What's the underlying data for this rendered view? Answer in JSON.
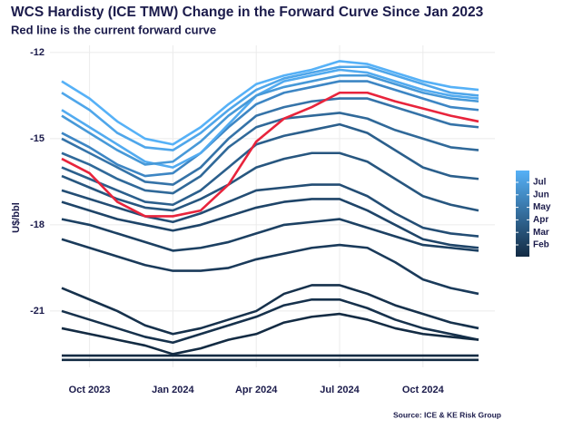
{
  "chart_data": {
    "type": "line",
    "title": "WCS Hardisty (ICE TMW) Change in the Forward Curve Since Jan 2023",
    "subtitle": "Red line is the current forward curve",
    "y_label": "U$/bbl",
    "source": "Source: ICE & KE Risk Group",
    "categories": [
      null,
      "Oct 2023",
      null,
      null,
      "Jan 2024",
      null,
      null,
      "Apr 2024",
      null,
      null,
      "Jul 2024",
      null,
      null,
      "Oct 2024",
      null,
      null
    ],
    "ylim": [
      -22.96,
      -11.75
    ],
    "yticks": [
      -12,
      -15,
      -18,
      -21
    ],
    "grid": true,
    "legend": {
      "position": "right",
      "labels": [
        "Feb",
        "Mar",
        "Apr",
        "May",
        "Jun",
        "Jul"
      ],
      "colors": [
        "#132B43",
        "#56B1F7"
      ]
    },
    "series": [
      {
        "color": "#132B43",
        "values": [
          -22.7,
          -22.7,
          -22.7,
          -22.7,
          -22.7,
          -22.7,
          -22.7,
          -22.7,
          -22.7,
          -22.7,
          -22.7,
          -22.7,
          -22.7,
          -22.7,
          -22.7,
          -22.7
        ]
      },
      {
        "color": "#132B43",
        "values": [
          -22.55,
          -22.55,
          -22.55,
          -22.55,
          -22.55,
          -22.55,
          -22.55,
          -22.55,
          -22.55,
          -22.55,
          -22.55,
          -22.55,
          -22.55,
          -22.55,
          -22.55,
          -22.55
        ]
      },
      {
        "color": "#16314c",
        "values": [
          -21.0,
          -21.3,
          -21.6,
          -21.9,
          -22.1,
          -21.8,
          -21.5,
          -21.2,
          -20.8,
          -20.6,
          -20.6,
          -20.9,
          -21.3,
          -21.6,
          -21.8,
          -22.0
        ]
      },
      {
        "color": "#16314c",
        "values": [
          -20.2,
          -20.6,
          -21.0,
          -21.5,
          -21.8,
          -21.6,
          -21.3,
          -21.0,
          -20.4,
          -20.1,
          -20.1,
          -20.4,
          -20.8,
          -21.1,
          -21.4,
          -21.6
        ]
      },
      {
        "color": "#132B43",
        "values": [
          -21.6,
          -21.8,
          -22.0,
          -22.2,
          -22.5,
          -22.3,
          -22.0,
          -21.8,
          -21.4,
          -21.2,
          -21.1,
          -21.3,
          -21.6,
          -21.8,
          -21.9,
          -22.0
        ]
      },
      {
        "color": "#1a3a5a",
        "values": [
          -18.5,
          -18.8,
          -19.1,
          -19.4,
          -19.6,
          -19.6,
          -19.5,
          -19.2,
          -19.0,
          -18.8,
          -18.7,
          -18.8,
          -19.3,
          -19.9,
          -20.2,
          -20.4
        ]
      },
      {
        "color": "#1c4062",
        "values": [
          -17.8,
          -18.0,
          -18.3,
          -18.6,
          -18.9,
          -18.8,
          -18.6,
          -18.3,
          -18.0,
          -17.9,
          -17.8,
          -18.1,
          -18.4,
          -18.7,
          -18.8,
          -18.9
        ]
      },
      {
        "color": "#1e4468",
        "values": [
          -17.2,
          -17.5,
          -17.8,
          -18.0,
          -18.2,
          -18.0,
          -17.7,
          -17.4,
          -17.2,
          -17.1,
          -17.1,
          -17.5,
          -18.0,
          -18.5,
          -18.7,
          -18.8
        ]
      },
      {
        "color": "#234d74",
        "values": [
          -16.8,
          -17.1,
          -17.4,
          -17.7,
          -17.9,
          -17.6,
          -17.2,
          -16.8,
          -16.7,
          -16.6,
          -16.6,
          -17.0,
          -17.6,
          -18.1,
          -18.3,
          -18.4
        ]
      },
      {
        "color": "#27567f",
        "values": [
          -16.3,
          -16.7,
          -17.1,
          -17.4,
          -17.5,
          -17.1,
          -16.6,
          -16.0,
          -15.7,
          -15.5,
          -15.5,
          -15.8,
          -16.4,
          -17.0,
          -17.3,
          -17.5
        ]
      },
      {
        "color": "#2b5f8c",
        "values": [
          -16.0,
          -16.4,
          -16.8,
          -17.2,
          -17.3,
          -16.8,
          -16.0,
          -15.2,
          -14.9,
          -14.7,
          -14.5,
          -14.8,
          -15.4,
          -16.0,
          -16.3,
          -16.4
        ]
      },
      {
        "color": "#306999",
        "values": [
          -15.5,
          -15.9,
          -16.4,
          -16.8,
          -16.9,
          -16.3,
          -15.3,
          -14.6,
          -14.3,
          -14.2,
          -14.1,
          -14.3,
          -14.7,
          -15.0,
          -15.3,
          -15.4
        ]
      },
      {
        "color": "#3573a8",
        "values": [
          -15.0,
          -15.5,
          -16.0,
          -16.5,
          -16.6,
          -16.0,
          -15.0,
          -14.2,
          -13.9,
          -13.7,
          -13.6,
          -13.6,
          -13.9,
          -14.2,
          -14.5,
          -14.6
        ]
      },
      {
        "color": "#3d86c4",
        "values": [
          -14.8,
          -15.3,
          -15.9,
          -16.3,
          -16.2,
          -15.5,
          -14.6,
          -13.8,
          -13.4,
          -13.2,
          -13.0,
          -13.0,
          -13.3,
          -13.6,
          -13.9,
          -14.0
        ]
      },
      {
        "color": "#52abf0",
        "values": [
          -14.0,
          -14.6,
          -15.2,
          -15.8,
          -16.0,
          -15.5,
          -14.5,
          -13.5,
          -13.0,
          -12.8,
          -12.6,
          -12.7,
          -13.0,
          -13.3,
          -13.5,
          -13.6
        ]
      },
      {
        "color": "#4799d8",
        "values": [
          -14.2,
          -14.8,
          -15.4,
          -15.9,
          -15.8,
          -15.1,
          -14.2,
          -13.5,
          -13.2,
          -13.0,
          -12.8,
          -12.8,
          -13.1,
          -13.4,
          -13.6,
          -13.7
        ]
      },
      {
        "color": "#4fa6ea",
        "values": [
          -13.4,
          -14.0,
          -14.8,
          -15.3,
          -15.4,
          -14.8,
          -14.0,
          -13.3,
          -12.9,
          -12.7,
          -12.5,
          -12.5,
          -12.8,
          -13.1,
          -13.4,
          -13.5
        ]
      },
      {
        "color": "#56B1F7",
        "values": [
          -13.0,
          -13.6,
          -14.4,
          -15.0,
          -15.2,
          -14.6,
          -13.8,
          -13.1,
          -12.8,
          -12.6,
          -12.3,
          -12.4,
          -12.7,
          -13.0,
          -13.2,
          -13.3
        ]
      },
      {
        "color": "#e8243c",
        "values": [
          -15.7,
          -16.2,
          -17.2,
          -17.7,
          -17.7,
          -17.5,
          -16.6,
          -15.1,
          -14.3,
          -13.9,
          -13.4,
          -13.4,
          -13.7,
          -13.95,
          -14.2,
          -14.4
        ]
      }
    ]
  }
}
